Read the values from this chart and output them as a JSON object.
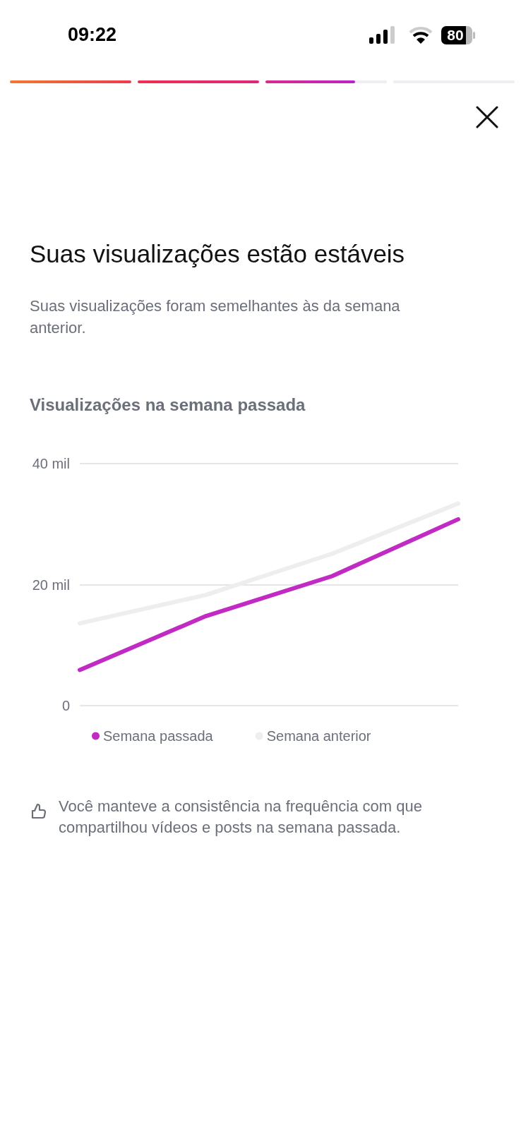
{
  "chart_data": {
    "type": "line",
    "title": "Suas visualizações estão estáveis",
    "subtitle": "Suas visualizações foram semelhantes às da semana anterior.",
    "annotations": [
      "Visualizações na semana passada",
      "Você manteve a consistência na frequência com que compartilhou vídeos e posts na semana passada.",
      "09:22",
      "80"
    ],
    "categories": [
      null,
      null,
      null,
      null
    ],
    "series": [
      {
        "name": "Semana passada",
        "color": "#c12bc3",
        "values": [
          5.9,
          14.8,
          21.4,
          30.8
        ]
      },
      {
        "name": "Semana anterior",
        "color": "#eeeeee",
        "values": [
          13.6,
          18.3,
          25.1,
          33.4
        ]
      }
    ],
    "ylim": [
      0,
      40
    ],
    "yticks": [
      0,
      {
        "value": 20,
        "label": "20 mil"
      },
      {
        "value": 40,
        "label": "40 mil"
      }
    ],
    "grid": "y",
    "legend": "bottom",
    "tick_labels": "y",
    "marker": "none",
    "line_style": "solid"
  }
}
